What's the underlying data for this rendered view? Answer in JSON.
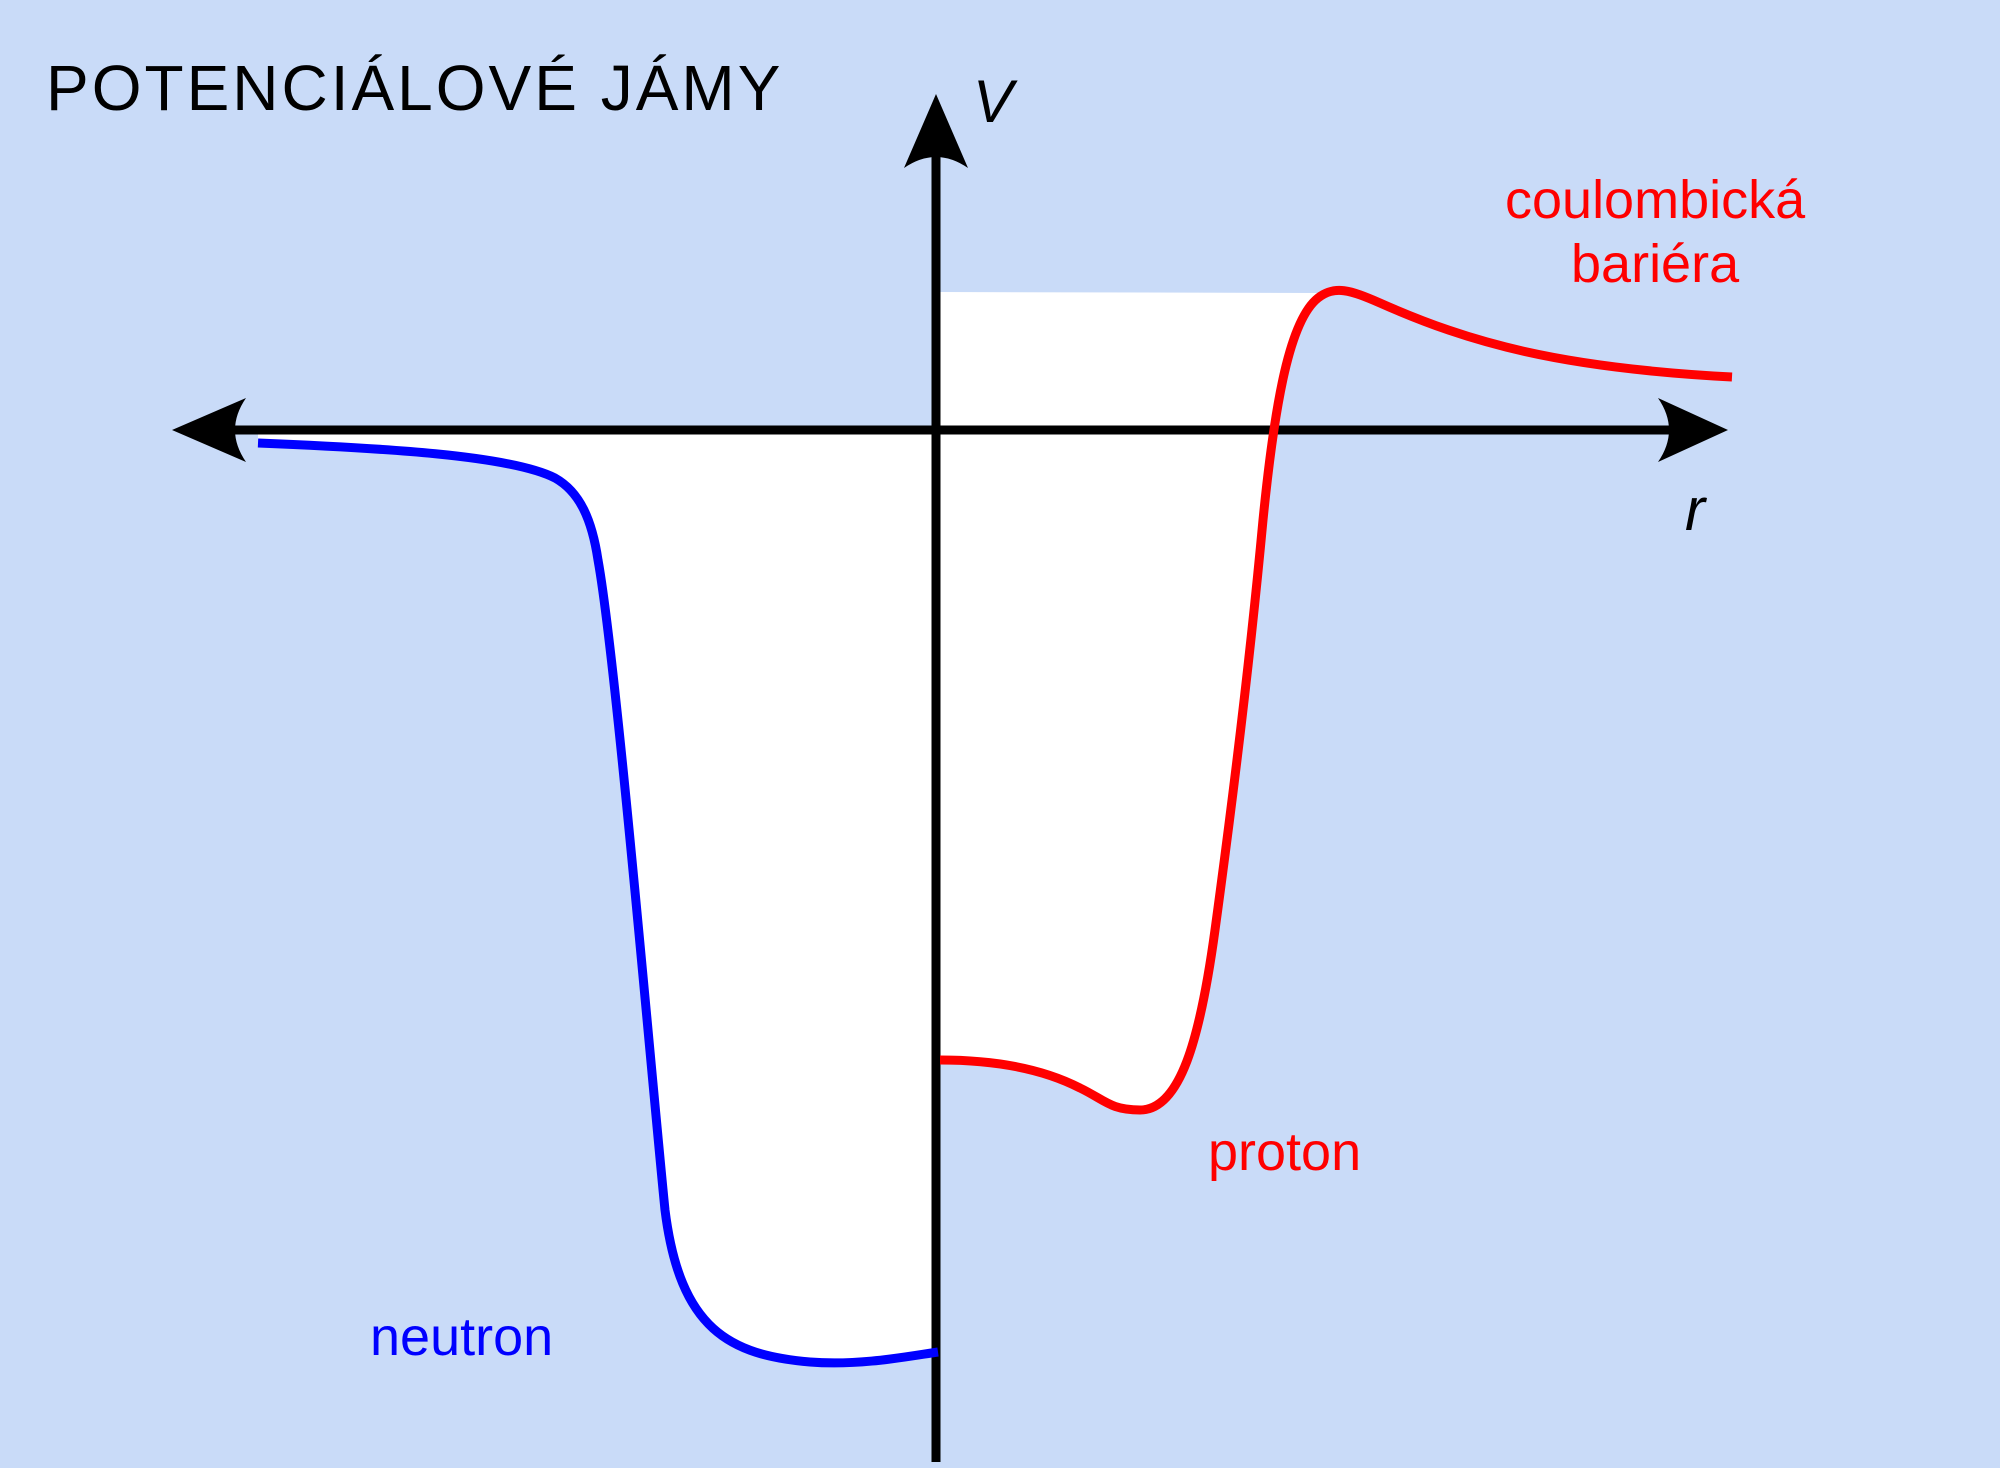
{
  "title": "POTENCIÁLOVÉ JÁMY",
  "axes": {
    "y_label": "V",
    "x_label": "r"
  },
  "labels": {
    "coulomb_line1": "coulombická",
    "coulomb_line2": "bariéra",
    "proton": "proton",
    "neutron": "neutron"
  },
  "colors": {
    "background": "#c9dbf8",
    "well_fill": "#ffffff",
    "axes": "#000000",
    "neutron": "#0000ff",
    "proton": "#ff0000"
  }
}
